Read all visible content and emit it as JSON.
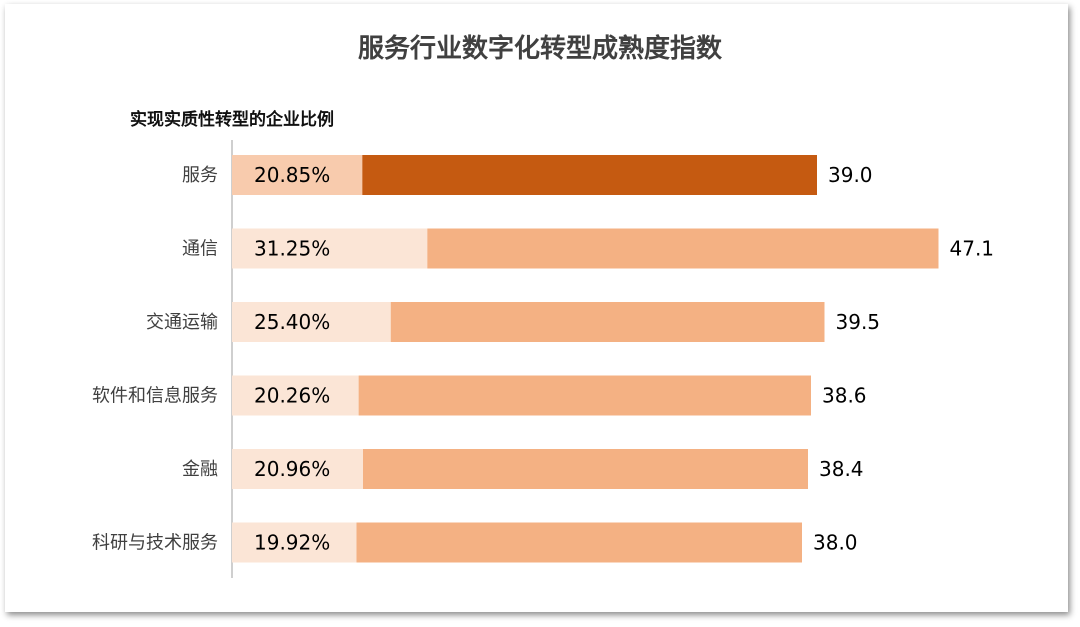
{
  "title": "服务行业数字化转型成熟度指数",
  "subtitle": "实现实质性转型的企业比例",
  "colors": {
    "highlight": "#c55a11",
    "bar": "#f4b183",
    "pct_highlight": "#f8cbad",
    "pct_bar": "#fbe5d6",
    "axis": "#bfbfbf",
    "text": "#404040"
  },
  "chart_data": {
    "type": "bar",
    "orientation": "horizontal",
    "categories": [
      "服务",
      "通信",
      "交通运输",
      "软件和信息服务",
      "金融",
      "科研与技术服务"
    ],
    "series": [
      {
        "values": [
          20.85,
          31.25,
          25.4,
          20.26,
          20.96,
          19.92
        ],
        "labels": [
          "20.85%",
          "31.25%",
          "25.40%",
          "20.26%",
          "20.96%",
          "19.92%"
        ]
      },
      {
        "values": [
          39.0,
          47.1,
          39.5,
          38.6,
          38.4,
          38.0
        ],
        "labels": [
          "39.0",
          "47.1",
          "39.5",
          "38.6",
          "38.4",
          "38.0"
        ]
      }
    ],
    "highlight_index": 0,
    "xlim": [
      0,
      60
    ],
    "grid": false,
    "legend": "none"
  }
}
